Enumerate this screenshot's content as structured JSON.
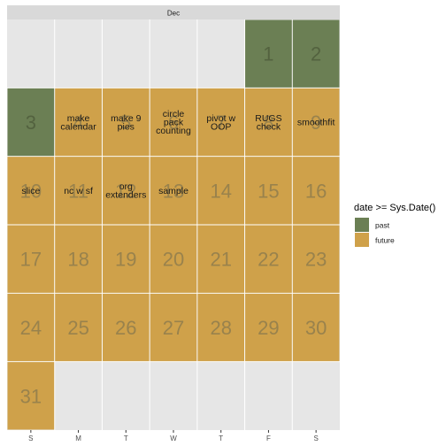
{
  "chart_data": {
    "type": "heatmap",
    "title": "",
    "facet_label": "Dec",
    "x_categories": [
      "S",
      "M",
      "T",
      "W",
      "T",
      "F",
      "S"
    ],
    "weeks": 6,
    "legend": {
      "title": "date >= Sys.Date()",
      "placement": "right",
      "entries": [
        {
          "label": "past",
          "color": "#6b7f54"
        },
        {
          "label": "future",
          "color": "#cfa14a"
        }
      ]
    },
    "colors": {
      "panel": "#e6e6e6",
      "strip": "#d9d9d9",
      "grid": "#ffffff",
      "past": "#6b7f54",
      "future": "#cfa14a"
    },
    "days": [
      {
        "day": 1,
        "weekday": 5,
        "week": 0,
        "status": "past",
        "text": ""
      },
      {
        "day": 2,
        "weekday": 6,
        "week": 0,
        "status": "past",
        "text": ""
      },
      {
        "day": 3,
        "weekday": 0,
        "week": 1,
        "status": "past",
        "text": ""
      },
      {
        "day": 4,
        "weekday": 1,
        "week": 1,
        "status": "future",
        "text": "make\ncalendar"
      },
      {
        "day": 5,
        "weekday": 2,
        "week": 1,
        "status": "future",
        "text": "make 9\npies"
      },
      {
        "day": 6,
        "weekday": 3,
        "week": 1,
        "status": "future",
        "text": "circle\npack\ncounting"
      },
      {
        "day": 7,
        "weekday": 4,
        "week": 1,
        "status": "future",
        "text": "pivot w\nOOP"
      },
      {
        "day": 8,
        "weekday": 5,
        "week": 1,
        "status": "future",
        "text": "RUGS\ncheck"
      },
      {
        "day": 9,
        "weekday": 6,
        "week": 1,
        "status": "future",
        "text": "smoothfit"
      },
      {
        "day": 10,
        "weekday": 0,
        "week": 2,
        "status": "future",
        "text": "slice"
      },
      {
        "day": 11,
        "weekday": 1,
        "week": 2,
        "status": "future",
        "text": "nc w sf"
      },
      {
        "day": 12,
        "weekday": 2,
        "week": 2,
        "status": "future",
        "text": "org\nextenders"
      },
      {
        "day": 13,
        "weekday": 3,
        "week": 2,
        "status": "future",
        "text": "sample"
      },
      {
        "day": 14,
        "weekday": 4,
        "week": 2,
        "status": "future",
        "text": ""
      },
      {
        "day": 15,
        "weekday": 5,
        "week": 2,
        "status": "future",
        "text": ""
      },
      {
        "day": 16,
        "weekday": 6,
        "week": 2,
        "status": "future",
        "text": ""
      },
      {
        "day": 17,
        "weekday": 0,
        "week": 3,
        "status": "future",
        "text": ""
      },
      {
        "day": 18,
        "weekday": 1,
        "week": 3,
        "status": "future",
        "text": ""
      },
      {
        "day": 19,
        "weekday": 2,
        "week": 3,
        "status": "future",
        "text": ""
      },
      {
        "day": 20,
        "weekday": 3,
        "week": 3,
        "status": "future",
        "text": ""
      },
      {
        "day": 21,
        "weekday": 4,
        "week": 3,
        "status": "future",
        "text": ""
      },
      {
        "day": 22,
        "weekday": 5,
        "week": 3,
        "status": "future",
        "text": ""
      },
      {
        "day": 23,
        "weekday": 6,
        "week": 3,
        "status": "future",
        "text": ""
      },
      {
        "day": 24,
        "weekday": 0,
        "week": 4,
        "status": "future",
        "text": ""
      },
      {
        "day": 25,
        "weekday": 1,
        "week": 4,
        "status": "future",
        "text": ""
      },
      {
        "day": 26,
        "weekday": 2,
        "week": 4,
        "status": "future",
        "text": ""
      },
      {
        "day": 27,
        "weekday": 3,
        "week": 4,
        "status": "future",
        "text": ""
      },
      {
        "day": 28,
        "weekday": 4,
        "week": 4,
        "status": "future",
        "text": ""
      },
      {
        "day": 29,
        "weekday": 5,
        "week": 4,
        "status": "future",
        "text": ""
      },
      {
        "day": 30,
        "weekday": 6,
        "week": 4,
        "status": "future",
        "text": ""
      },
      {
        "day": 31,
        "weekday": 0,
        "week": 5,
        "status": "future",
        "text": ""
      }
    ]
  }
}
